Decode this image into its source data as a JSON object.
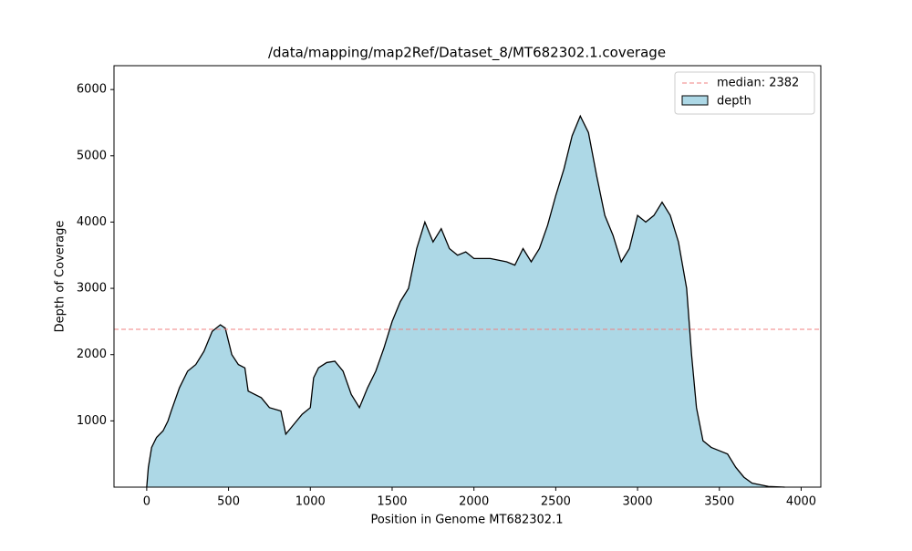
{
  "chart_data": {
    "type": "area",
    "title": "/data/mapping/map2Ref/Dataset_8/MT682302.1.coverage",
    "xlabel": "Position in Genome MT682302.1",
    "ylabel": "Depth of Coverage",
    "x": [
      0,
      10,
      30,
      60,
      100,
      130,
      150,
      200,
      250,
      300,
      350,
      400,
      450,
      480,
      520,
      560,
      600,
      620,
      700,
      750,
      820,
      850,
      900,
      950,
      1000,
      1020,
      1050,
      1100,
      1150,
      1200,
      1250,
      1300,
      1350,
      1400,
      1450,
      1500,
      1550,
      1600,
      1650,
      1700,
      1750,
      1800,
      1850,
      1900,
      1950,
      2000,
      2100,
      2200,
      2250,
      2300,
      2350,
      2400,
      2450,
      2500,
      2550,
      2600,
      2650,
      2700,
      2750,
      2800,
      2850,
      2900,
      2950,
      3000,
      3050,
      3100,
      3150,
      3200,
      3250,
      3300,
      3330,
      3360,
      3400,
      3450,
      3500,
      3550,
      3600,
      3650,
      3700,
      3800,
      3900
    ],
    "series": [
      {
        "name": "depth",
        "color": "#add8e6",
        "values": [
          0,
          300,
          600,
          750,
          850,
          1000,
          1150,
          1500,
          1750,
          1850,
          2050,
          2350,
          2450,
          2400,
          2000,
          1850,
          1800,
          1450,
          1350,
          1200,
          1150,
          800,
          950,
          1100,
          1200,
          1650,
          1800,
          1880,
          1900,
          1750,
          1400,
          1200,
          1500,
          1750,
          2100,
          2500,
          2800,
          3000,
          3600,
          4000,
          3700,
          3900,
          3600,
          3500,
          3550,
          3450,
          3450,
          3400,
          3350,
          3600,
          3400,
          3600,
          3950,
          4400,
          4800,
          5300,
          5600,
          5350,
          4700,
          4100,
          3800,
          3400,
          3600,
          4100,
          4000,
          4100,
          4300,
          4100,
          3700,
          3000,
          2000,
          1200,
          700,
          600,
          550,
          500,
          300,
          150,
          60,
          10,
          0
        ]
      }
    ],
    "median": {
      "value": 2382,
      "label": "median:  2382",
      "color": "#f08080"
    },
    "xlim": [
      -200,
      4120
    ],
    "ylim": [
      0,
      6360
    ],
    "xticks": [
      0,
      500,
      1000,
      1500,
      2000,
      2500,
      3000,
      3500,
      4000
    ],
    "yticks": [
      1000,
      2000,
      3000,
      4000,
      5000,
      6000
    ],
    "legend": "upper right"
  }
}
